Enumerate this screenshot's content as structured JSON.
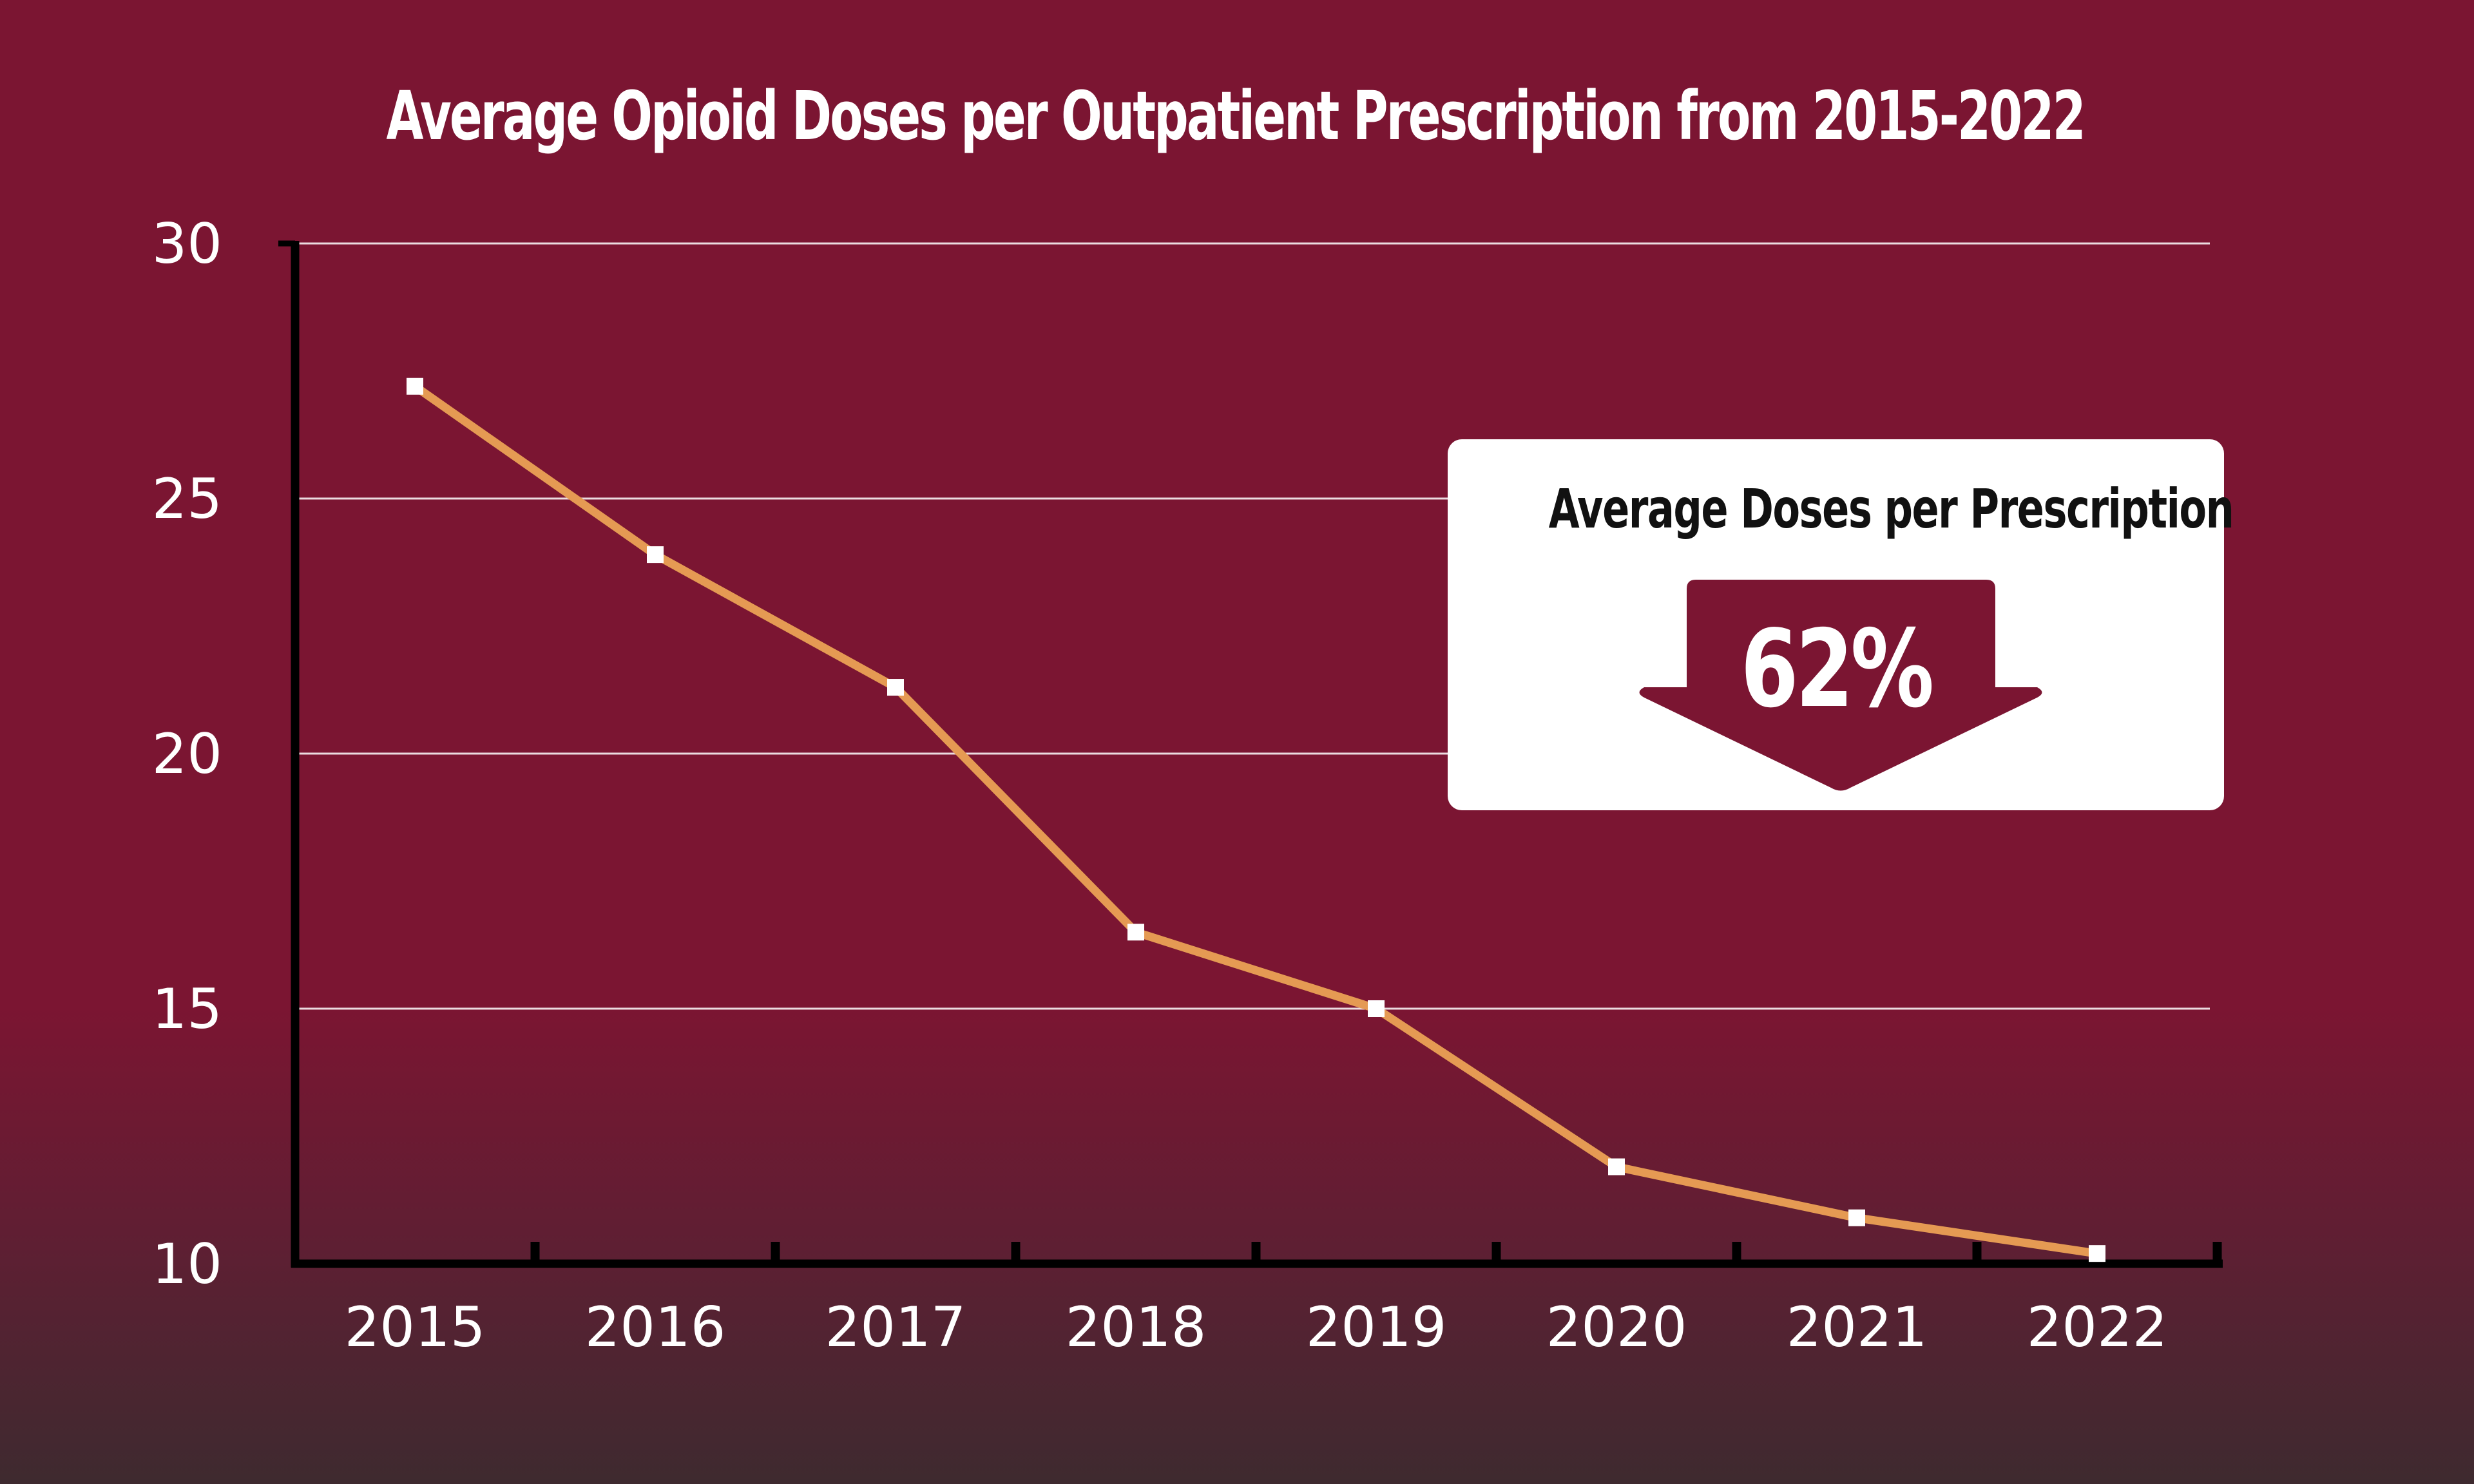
{
  "chart_data": {
    "type": "line",
    "title": "Average Opioid Doses per Outpatient Prescription from 2015-2022",
    "x": [
      "2015",
      "2016",
      "2017",
      "2018",
      "2019",
      "2020",
      "2021",
      "2022"
    ],
    "series": [
      {
        "values": [
          27.2,
          23.9,
          21.3,
          16.5,
          15.0,
          11.9,
          10.9,
          10.2
        ]
      }
    ],
    "ylim": [
      10,
      30
    ],
    "yticks": [
      "10",
      "15",
      "20",
      "25",
      "30"
    ],
    "grid": true,
    "xlabel": "",
    "ylabel": ""
  },
  "callout": {
    "title": "Average Doses per Prescription",
    "value": "62%",
    "icon": "down-arrow-icon"
  },
  "colors": {
    "background": "#7b1532",
    "line": "#e59a53",
    "marker": "#ffffff",
    "axis": "#000000",
    "grid": "#ffffff"
  }
}
